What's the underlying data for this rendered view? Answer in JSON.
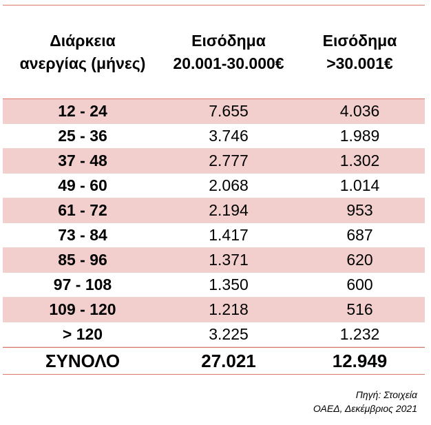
{
  "chart_data": {
    "type": "table",
    "columns": [
      "Διάρκεια\nανεργίας (μήνες)",
      "Εισόδημα\n20.001-30.000€",
      "Εισόδημα\n>30.001€"
    ],
    "rows": [
      [
        "12 - 24",
        "7.655",
        "4.036"
      ],
      [
        "25 - 36",
        "3.746",
        "1.989"
      ],
      [
        "37 - 48",
        "2.777",
        "1.302"
      ],
      [
        "49 - 60",
        "2.068",
        "1.014"
      ],
      [
        "61 - 72",
        "2.194",
        "953"
      ],
      [
        "73 - 84",
        "1.417",
        "687"
      ],
      [
        "85 - 96",
        "1.371",
        "620"
      ],
      [
        "97 - 108",
        "1.350",
        "600"
      ],
      [
        "109 - 120",
        "1.218",
        "516"
      ],
      [
        "> 120",
        "3.225",
        "1.232"
      ]
    ],
    "total": [
      "ΣΥΝΟΛΟ",
      "27.021",
      "12.949"
    ]
  },
  "source": {
    "line1": "Πηγή:  Στοιχεία",
    "line2": "ΟΑΕΔ, Δεκέμβριος 2021"
  },
  "colors": {
    "rule": "#d9796b",
    "shade": "#f2cfcc"
  }
}
